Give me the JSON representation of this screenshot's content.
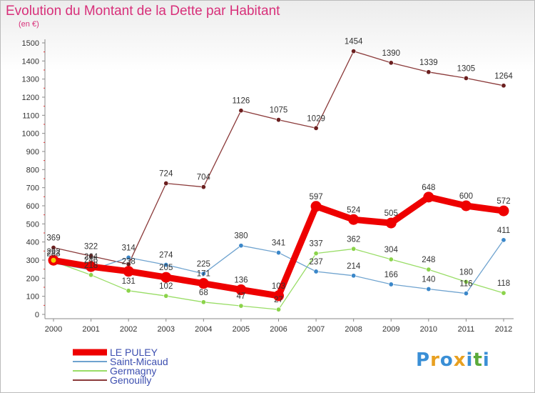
{
  "title": "Evolution du Montant de la Dette par Habitant",
  "unit": "(en €)",
  "logo": {
    "letters": [
      "P",
      "r",
      "o",
      "x",
      "i",
      "t",
      "i"
    ],
    "colors": [
      "#3a8fd6",
      "#e8a020",
      "#3a8fd6",
      "#e8a020",
      "#3a8fd6",
      "#5aaa3a",
      "#3a8fd6"
    ]
  },
  "chart_data": {
    "type": "line",
    "x": [
      "2000",
      "2001",
      "2002",
      "2003",
      "2004",
      "2005",
      "2006",
      "2007",
      "2008",
      "2009",
      "2010",
      "2011",
      "2012"
    ],
    "ylim": [
      0,
      1500
    ],
    "yticks": [
      0,
      100,
      200,
      300,
      400,
      500,
      600,
      700,
      800,
      900,
      1000,
      1100,
      1200,
      1300,
      1400,
      1500
    ],
    "grid": false,
    "legend_position": "bottom-left",
    "series": [
      {
        "name": "LE PULEY",
        "color": "#ee0000",
        "marker_color": "#ee0000",
        "values": [
          299,
          264,
          238,
          205,
          171,
          136,
          103,
          597,
          524,
          505,
          648,
          600,
          572
        ]
      },
      {
        "name": "Saint-Micaud",
        "color": "#6fa3cf",
        "marker_color": "#3b87c9",
        "values": [
          283,
          246,
          314,
          274,
          225,
          380,
          341,
          237,
          214,
          166,
          140,
          116,
          411
        ]
      },
      {
        "name": "Germagny",
        "color": "#99dd66",
        "marker_color": "#8bd34a",
        "values": [
          292,
          218,
          131,
          102,
          68,
          47,
          27,
          337,
          362,
          304,
          248,
          180,
          118
        ]
      },
      {
        "name": "Genouilly",
        "color": "#8b3a3a",
        "marker_color": "#6b1f1f",
        "values": [
          369,
          322,
          277,
          724,
          704,
          1126,
          1075,
          1029,
          1454,
          1390,
          1339,
          1305,
          1264
        ]
      }
    ],
    "value_labels": [
      [
        null,
        "264",
        "238",
        "205",
        "171",
        "136",
        "103",
        "597",
        "524",
        "505",
        "648",
        "600",
        "572"
      ],
      [
        "283",
        "246",
        "314",
        "274",
        "225",
        "380",
        "341",
        "237",
        "214",
        "166",
        "140",
        "116",
        "411"
      ],
      [
        "292",
        "218",
        "131",
        "102",
        "68",
        "47",
        "27",
        "337",
        "362",
        "304",
        "248",
        "180",
        "118"
      ],
      [
        "369",
        "322",
        null,
        "724",
        "704",
        "1126",
        "1075",
        "1029",
        "1454",
        "1390",
        "1339",
        "1305",
        "1264"
      ]
    ]
  }
}
